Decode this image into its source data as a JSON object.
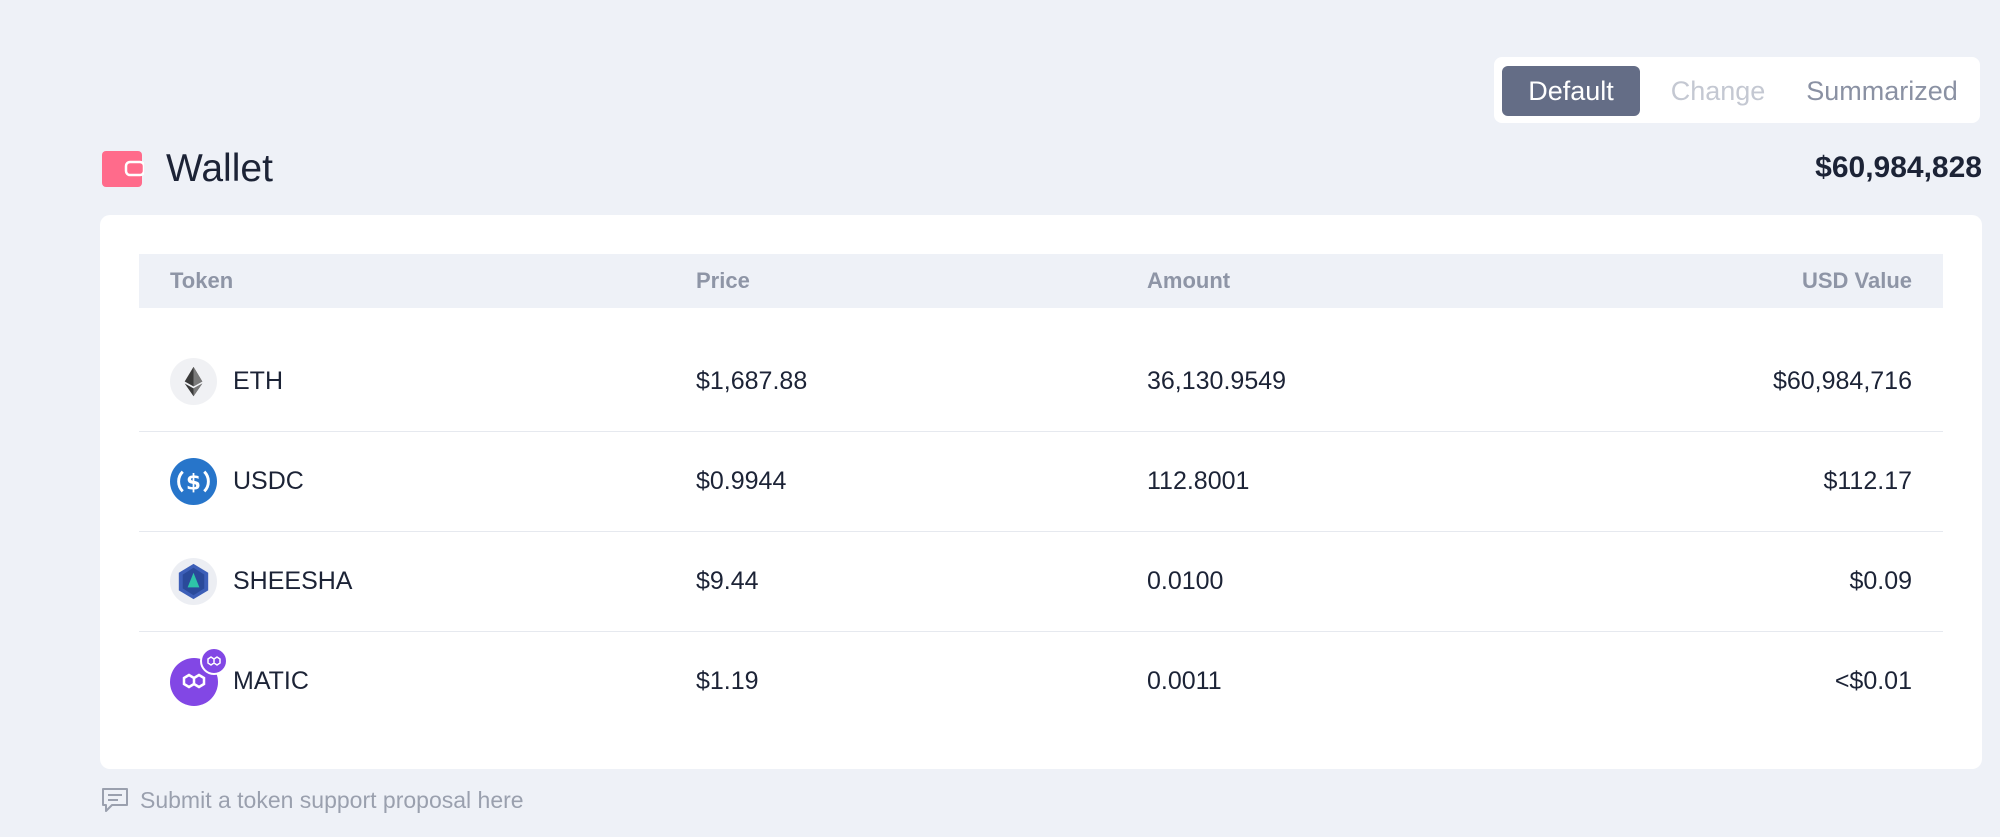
{
  "view_toggle": {
    "options": [
      "Default",
      "Change",
      "Summarized"
    ],
    "selected": "Default"
  },
  "header": {
    "title": "Wallet",
    "total": "$60,984,828",
    "icon": "wallet-icon"
  },
  "table": {
    "columns": {
      "token": "Token",
      "price": "Price",
      "amount": "Amount",
      "usd_value": "USD Value"
    },
    "rows": [
      {
        "token": "ETH",
        "price": "$1,687.88",
        "amount": "36,130.9549",
        "usd_value": "$60,984,716",
        "icon": "eth-icon"
      },
      {
        "token": "USDC",
        "price": "$0.9944",
        "amount": "112.8001",
        "usd_value": "$112.17",
        "icon": "usdc-icon"
      },
      {
        "token": "SHEESHA",
        "price": "$9.44",
        "amount": "0.0100",
        "usd_value": "$0.09",
        "icon": "sheesha-icon"
      },
      {
        "token": "MATIC",
        "price": "$1.19",
        "amount": "0.0011",
        "usd_value": "<$0.01",
        "icon": "matic-icon"
      }
    ]
  },
  "footer": {
    "proposal_link": "Submit a token support proposal here",
    "icon": "chat-icon"
  },
  "colors": {
    "background": "#eef1f7",
    "active_toggle": "#646d86",
    "wallet_icon": "#ff6b8b",
    "usdc": "#2775ca",
    "matic": "#8247e5"
  }
}
